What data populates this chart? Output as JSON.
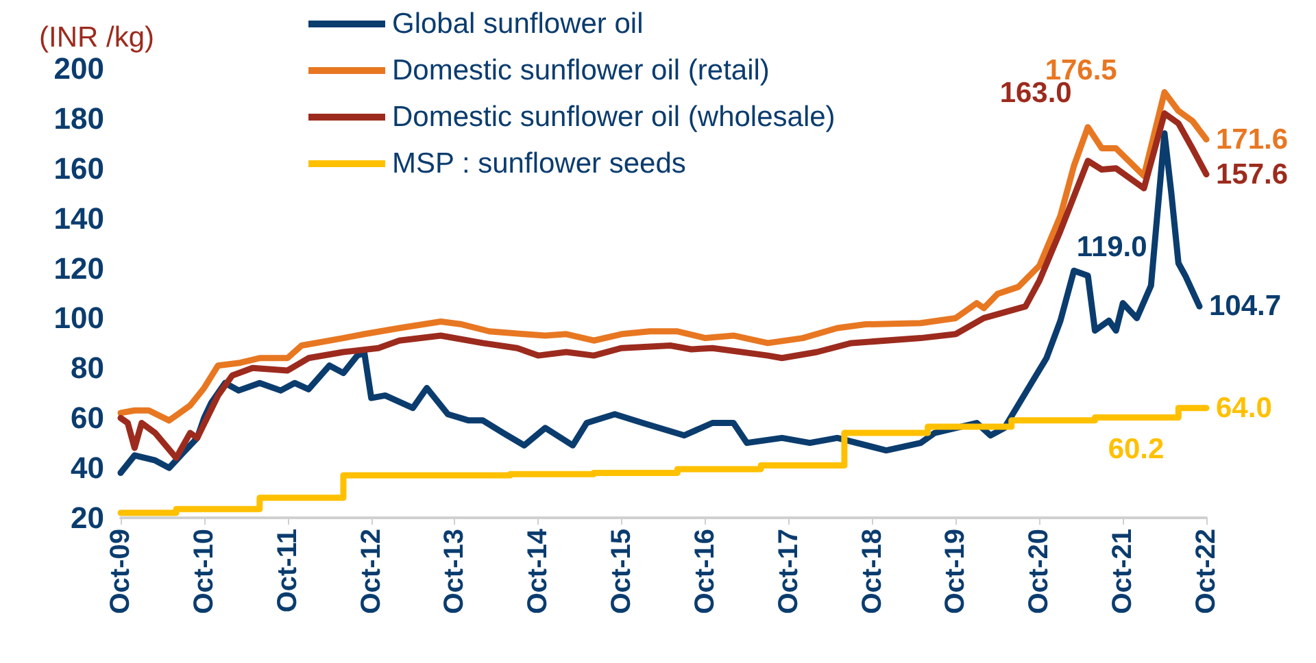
{
  "chart_data": {
    "type": "line",
    "ylabel": "(INR /kg)",
    "xlim": [
      "2009-10",
      "2022-10"
    ],
    "xticks": [
      {
        "value": "2009-10",
        "label": "Oct-09"
      },
      {
        "value": "2010-10",
        "label": "Oct-10"
      },
      {
        "value": "2011-10",
        "label": "Oct-11"
      },
      {
        "value": "2012-10",
        "label": "Oct-12"
      },
      {
        "value": "2013-10",
        "label": "Oct-13"
      },
      {
        "value": "2014-10",
        "label": "Oct-14"
      },
      {
        "value": "2015-10",
        "label": "Oct-15"
      },
      {
        "value": "2016-10",
        "label": "Oct-16"
      },
      {
        "value": "2017-10",
        "label": "Oct-17"
      },
      {
        "value": "2018-10",
        "label": "Oct-18"
      },
      {
        "value": "2019-10",
        "label": "Oct-19"
      },
      {
        "value": "2020-10",
        "label": "Oct-20"
      },
      {
        "value": "2021-10",
        "label": "Oct-21"
      },
      {
        "value": "2022-10",
        "label": "Oct-22"
      }
    ],
    "ylim": [
      20,
      200
    ],
    "yticks": [
      20,
      40,
      60,
      80,
      100,
      120,
      140,
      160,
      180,
      200
    ],
    "grid": false,
    "legend": "top left",
    "series": [
      {
        "name": "Global sunflower oil",
        "color": "#0b3c6e",
        "x": [
          "2009-10",
          "2009-12",
          "2010-03",
          "2010-05",
          "2010-07",
          "2010-09",
          "2010-10",
          "2010-11",
          "2011-01",
          "2011-03",
          "2011-06",
          "2011-09",
          "2011-11",
          "2012-01",
          "2012-04",
          "2012-06",
          "2012-08",
          "2012-09",
          "2012-10",
          "2012-12",
          "2013-04",
          "2013-06",
          "2013-09",
          "2013-12",
          "2014-02",
          "2014-05",
          "2014-08",
          "2014-11",
          "2015-03",
          "2015-05",
          "2015-09",
          "2016-01",
          "2016-07",
          "2016-11",
          "2017-02",
          "2017-04",
          "2017-09",
          "2018-01",
          "2018-05",
          "2018-12",
          "2019-05",
          "2019-07",
          "2020-01",
          "2020-03",
          "2020-05",
          "2020-08",
          "2020-11",
          "2021-01",
          "2021-03",
          "2021-05",
          "2021-06",
          "2021-08",
          "2021-09",
          "2021-10",
          "2021-12",
          "2022-02",
          "2022-04",
          "2022-05",
          "2022-06",
          "2022-07",
          "2022-09"
        ],
        "values": [
          38,
          45,
          43,
          40,
          46,
          52,
          60,
          66,
          74,
          71,
          74,
          71,
          74,
          71.5,
          81,
          78,
          85,
          86,
          68,
          69,
          64,
          72,
          61.5,
          59,
          59,
          54,
          49,
          56,
          49,
          58,
          61.5,
          58,
          53,
          58,
          58,
          50,
          52,
          50,
          52,
          47,
          50,
          54,
          58,
          53,
          56,
          70,
          84,
          99,
          119,
          117,
          95,
          99,
          95,
          106,
          100,
          113,
          174,
          150,
          122,
          117,
          104.7
        ],
        "value_labels": [
          null,
          null,
          null,
          null,
          null,
          null,
          null,
          null,
          null,
          null,
          null,
          null,
          null,
          null,
          null,
          null,
          null,
          null,
          null,
          null,
          null,
          null,
          null,
          null,
          null,
          null,
          null,
          null,
          null,
          null,
          null,
          null,
          null,
          null,
          null,
          null,
          null,
          null,
          null,
          null,
          null,
          null,
          null,
          null,
          null,
          null,
          null,
          null,
          "119.0",
          null,
          null,
          null,
          null,
          null,
          null,
          null,
          null,
          null,
          null,
          null,
          "104.7"
        ]
      },
      {
        "name": "Domestic sunflower oil (retail)",
        "color": "#e87722",
        "x": [
          "2009-10",
          "2009-12",
          "2010-02",
          "2010-05",
          "2010-08",
          "2010-10",
          "2010-12",
          "2011-03",
          "2011-06",
          "2011-10",
          "2011-12",
          "2012-06",
          "2012-09",
          "2013-02",
          "2013-08",
          "2013-11",
          "2014-03",
          "2014-08",
          "2014-11",
          "2015-02",
          "2015-06",
          "2015-10",
          "2016-02",
          "2016-06",
          "2016-10",
          "2017-02",
          "2017-07",
          "2017-12",
          "2018-05",
          "2018-09",
          "2019-05",
          "2019-10",
          "2020-01",
          "2020-02",
          "2020-04",
          "2020-07",
          "2020-10",
          "2021-01",
          "2021-03",
          "2021-05",
          "2021-07",
          "2021-09",
          "2022-01",
          "2022-04",
          "2022-06",
          "2022-08",
          "2022-10"
        ],
        "values": [
          62,
          63,
          63,
          59,
          65,
          72,
          81,
          82,
          84,
          84,
          89,
          92,
          93.6,
          96,
          98.6,
          97.5,
          94.7,
          93.6,
          93,
          93.6,
          91,
          93.6,
          94.7,
          94.7,
          92,
          93,
          90,
          92,
          96,
          97.5,
          98,
          100,
          106,
          104,
          109.7,
          112.5,
          121,
          141,
          161,
          176.5,
          168,
          168,
          157,
          190.5,
          183,
          179,
          171.6
        ],
        "value_labels": [
          null,
          null,
          null,
          null,
          null,
          null,
          null,
          null,
          null,
          null,
          null,
          null,
          null,
          null,
          null,
          null,
          null,
          null,
          null,
          null,
          null,
          null,
          null,
          null,
          null,
          null,
          null,
          null,
          null,
          null,
          null,
          null,
          null,
          null,
          null,
          null,
          null,
          null,
          null,
          "176.5",
          null,
          null,
          null,
          null,
          null,
          null,
          "171.6"
        ]
      },
      {
        "name": "Domestic sunflower oil (wholesale)",
        "color": "#9c2b1e",
        "x": [
          "2009-10",
          "2009-11",
          "2009-12",
          "2010-01",
          "2010-03",
          "2010-06",
          "2010-08",
          "2010-09",
          "2010-12",
          "2011-02",
          "2011-05",
          "2011-10",
          "2012-01",
          "2012-06",
          "2012-11",
          "2013-02",
          "2013-08",
          "2014-02",
          "2014-07",
          "2014-10",
          "2015-02",
          "2015-06",
          "2015-10",
          "2016-05",
          "2016-08",
          "2016-11",
          "2017-07",
          "2017-09",
          "2018-02",
          "2018-07",
          "2019-05",
          "2019-10",
          "2020-02",
          "2020-08",
          "2020-10",
          "2021-01",
          "2021-05",
          "2021-07",
          "2021-09",
          "2022-01",
          "2022-04",
          "2022-06",
          "2022-08",
          "2022-10"
        ],
        "values": [
          60,
          58,
          48,
          58,
          54,
          44,
          54,
          52,
          69,
          77,
          80,
          79,
          84,
          86.4,
          88,
          91,
          93,
          90,
          88,
          85,
          86.4,
          85,
          88,
          89,
          87.5,
          88,
          85,
          84,
          86.4,
          90,
          92,
          93.6,
          100,
          104.7,
          115,
          135,
          163,
          159.5,
          160,
          152,
          182,
          178,
          168,
          157.6
        ],
        "value_labels": [
          null,
          null,
          null,
          null,
          null,
          null,
          null,
          null,
          null,
          null,
          null,
          null,
          null,
          null,
          null,
          null,
          null,
          null,
          null,
          null,
          null,
          null,
          null,
          null,
          null,
          null,
          null,
          null,
          null,
          null,
          null,
          null,
          null,
          null,
          null,
          null,
          "163.0",
          null,
          null,
          null,
          null,
          null,
          null,
          "157.6"
        ]
      },
      {
        "name": "MSP : sunflower seeds",
        "type": "step",
        "color": "#ffc000",
        "x": [
          "2009-10",
          "2010-06",
          "2011-06",
          "2012-06",
          "2014-06",
          "2015-06",
          "2016-06",
          "2017-06",
          "2018-06",
          "2019-06",
          "2020-06",
          "2021-06",
          "2022-06",
          "2022-10"
        ],
        "values": [
          22,
          23.5,
          28,
          37,
          37.5,
          38,
          39.5,
          41,
          54,
          56.5,
          59,
          60.2,
          64,
          64
        ],
        "value_labels": [
          null,
          null,
          null,
          null,
          null,
          null,
          null,
          null,
          null,
          null,
          null,
          "60.2",
          null,
          "64.0"
        ]
      }
    ]
  }
}
